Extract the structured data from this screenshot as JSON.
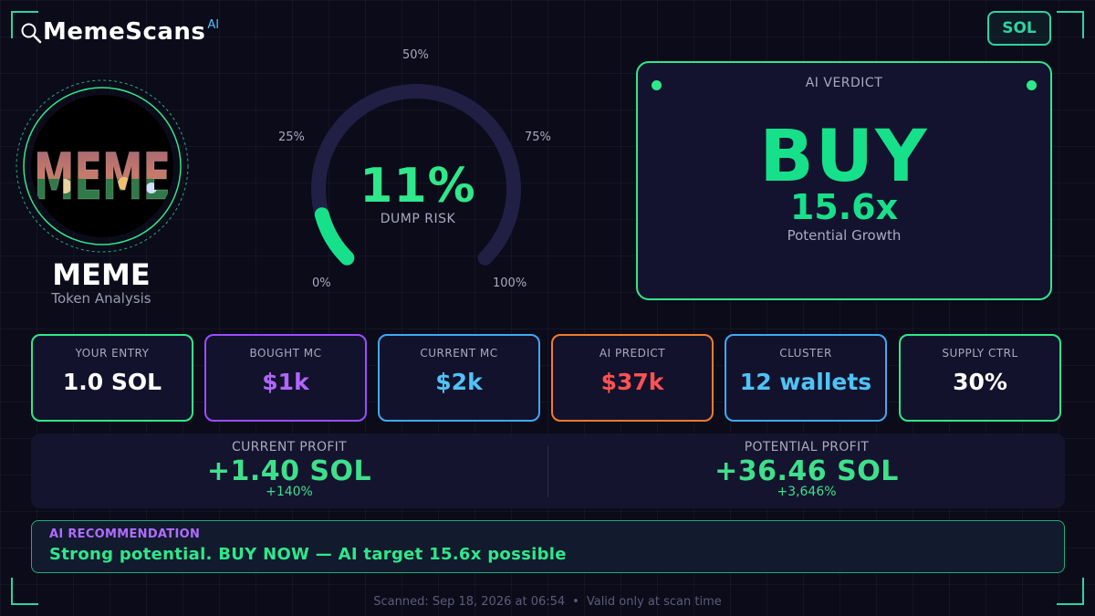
{
  "brand": {
    "name": "MemeScans",
    "superscript": "AI"
  },
  "chain_badge": "SOL",
  "token": {
    "logo_text": "MEME",
    "name": "MEME",
    "subtitle": "Token Analysis"
  },
  "gauge": {
    "value": "11%",
    "value_fraction": 0.11,
    "label": "DUMP RISK",
    "ticks": {
      "t0": "0%",
      "t25": "25%",
      "t50": "50%",
      "t75": "75%",
      "t100": "100%"
    },
    "fill_color": "#17e08a",
    "track_color": "#221f45"
  },
  "verdict": {
    "title": "AI VERDICT",
    "decision": "BUY",
    "multiplier": "15.6x",
    "subtitle": "Potential Growth"
  },
  "stats": [
    {
      "label": "YOUR ENTRY",
      "value": "1.0 SOL",
      "border_color": "#2ee88a",
      "value_color": "#ffffff"
    },
    {
      "label": "BOUGHT MC",
      "value": "$1k",
      "border_color": "#9b4dff",
      "value_color": "#b066ff"
    },
    {
      "label": "CURRENT MC",
      "value": "$2k",
      "border_color": "#3fa9f5",
      "value_color": "#4fc3f7"
    },
    {
      "label": "AI PREDICT",
      "value": "$37k",
      "border_color": "#f47b2b",
      "value_color": "#ff5252"
    },
    {
      "label": "CLUSTER",
      "value": "12 wallets",
      "border_color": "#3fa9f5",
      "value_color": "#4fc3f7"
    },
    {
      "label": "SUPPLY CTRL",
      "value": "30%",
      "border_color": "#2ee88a",
      "value_color": "#ffffff"
    }
  ],
  "profit": {
    "current": {
      "label": "CURRENT PROFIT",
      "value": "+1.40 SOL",
      "percent": "+140%"
    },
    "potential": {
      "label": "POTENTIAL PROFIT",
      "value": "+36.46 SOL",
      "percent": "+3,646%"
    }
  },
  "recommendation": {
    "title": "AI RECOMMENDATION",
    "text": "Strong potential. BUY NOW — AI target 15.6x possible"
  },
  "footer": {
    "scanned": "Scanned: Sep 18, 2026 at 06:54",
    "separator": "•",
    "validity": "Valid only at scan time"
  },
  "colors": {
    "accent": "#2ee88a",
    "background": "#0b0b1a",
    "panel": "#14132f",
    "purple": "#b06cff"
  }
}
